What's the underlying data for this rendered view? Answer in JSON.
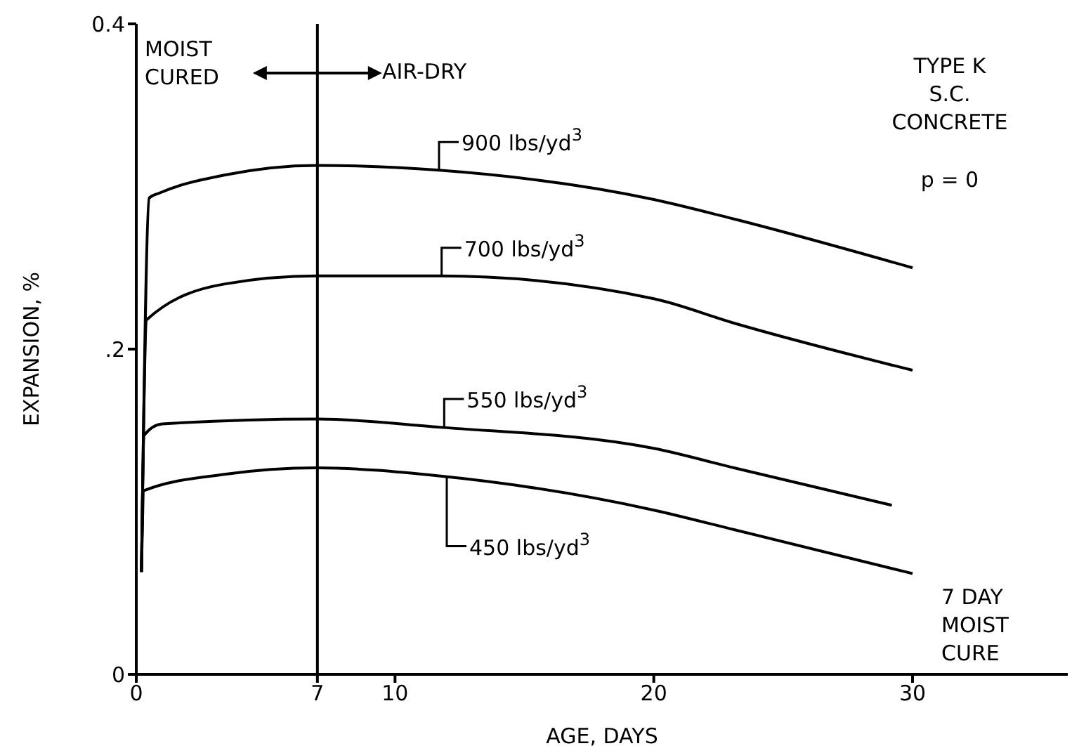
{
  "chart_data": {
    "type": "line",
    "xlabel": "AGE, DAYS",
    "ylabel": "EXPANSION, %",
    "xlim": [
      0,
      36
    ],
    "ylim": [
      0,
      0.4
    ],
    "xticks": [
      0,
      7,
      10,
      20,
      30
    ],
    "yticks": [
      0,
      {
        "value": 0.2,
        "label": ".2"
      },
      {
        "value": 0.4,
        "label": "0.4"
      }
    ],
    "marker": "none",
    "line_style": "solid",
    "series": [
      {
        "color": "#000000",
        "x": [
          0.2,
          0.5,
          0.9,
          3.4,
          7,
          11.7,
          20,
          23.1,
          30
        ],
        "values": [
          0.063,
          0.293,
          0.296,
          0.307,
          0.313,
          0.31,
          0.292,
          0.28,
          0.25
        ]
      },
      {
        "color": "#000000",
        "x": [
          0.2,
          0.4,
          3.4,
          7,
          11.7,
          20,
          23.1,
          30
        ],
        "values": [
          0.063,
          0.218,
          0.24,
          0.245,
          0.245,
          0.231,
          0.216,
          0.187
        ]
      },
      {
        "color": "#000000",
        "x": [
          0.2,
          0.3,
          1,
          7,
          11.7,
          20,
          23.1,
          29.2
        ],
        "values": [
          0.063,
          0.147,
          0.154,
          0.157,
          0.152,
          0.139,
          0.127,
          0.104
        ]
      },
      {
        "color": "#000000",
        "x": [
          0.2,
          0.3,
          3.4,
          7,
          11.7,
          20,
          23.1,
          30
        ],
        "values": [
          0.063,
          0.113,
          0.123,
          0.127,
          0.122,
          0.101,
          0.089,
          0.062
        ]
      }
    ],
    "ref_lines": [
      {
        "axis": "x",
        "value": 7,
        "color": "#000000"
      }
    ],
    "annotations": [
      "MOIST\nCURED",
      "AIR-DRY",
      "TYPE K\nS.C.\nCONCRETE",
      "p = 0",
      "7 DAY\nMOIST\nCURE",
      {
        "text": "900 lbs/yd$^{3}$",
        "x": 11.7,
        "y": 0.31
      },
      {
        "text": "700 lbs/yd$^{3}$",
        "x": 11.8,
        "y": 0.245
      },
      {
        "text": "550 lbs/yd$^{3}$",
        "x": 11.9,
        "y": 0.152
      },
      {
        "text": "450 lbs/yd$^{3}$",
        "x": 12,
        "y": 0.122
      }
    ]
  }
}
